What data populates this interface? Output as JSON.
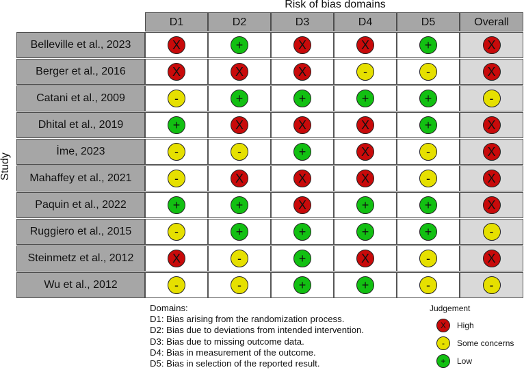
{
  "title": "Risk of bias domains",
  "y_axis_label": "Study",
  "columns": [
    "D1",
    "D2",
    "D3",
    "D4",
    "D5",
    "Overall"
  ],
  "symbols": {
    "high": "X",
    "some": "-",
    "low": "+"
  },
  "colors": {
    "high": "#c80a0a",
    "some": "#e6e000",
    "low": "#12c012",
    "header": "#a6a6a6",
    "overall_bg": "#d9d9d9"
  },
  "rows": [
    {
      "study": "Belleville et al., 2023",
      "judgements": [
        "high",
        "low",
        "high",
        "high",
        "low",
        "high"
      ]
    },
    {
      "study": "Berger et al., 2016",
      "judgements": [
        "high",
        "high",
        "high",
        "some",
        "some",
        "high"
      ]
    },
    {
      "study": "Catani et al., 2009",
      "judgements": [
        "some",
        "low",
        "low",
        "low",
        "low",
        "some"
      ]
    },
    {
      "study": "Dhital et al., 2019",
      "judgements": [
        "low",
        "high",
        "high",
        "high",
        "low",
        "high"
      ]
    },
    {
      "study": "İme, 2023",
      "judgements": [
        "some",
        "some",
        "low",
        "high",
        "some",
        "high"
      ]
    },
    {
      "study": "Mahaffey et al., 2021",
      "judgements": [
        "some",
        "high",
        "high",
        "high",
        "some",
        "high"
      ]
    },
    {
      "study": "Paquin et al., 2022",
      "judgements": [
        "low",
        "low",
        "high",
        "low",
        "low",
        "high"
      ]
    },
    {
      "study": "Ruggiero et al., 2015",
      "judgements": [
        "some",
        "low",
        "low",
        "low",
        "low",
        "some"
      ]
    },
    {
      "study": "Steinmetz et al., 2012",
      "judgements": [
        "high",
        "some",
        "low",
        "high",
        "some",
        "high"
      ]
    },
    {
      "study": "Wu et al., 2012",
      "judgements": [
        "some",
        "some",
        "low",
        "low",
        "some",
        "some"
      ]
    }
  ],
  "domains": {
    "title": "Domains:",
    "items": [
      "D1: Bias arising from the randomization process.",
      "D2: Bias due to deviations from intended intervention.",
      "D3: Bias due to missing outcome data.",
      "D4: Bias in measurement of the outcome.",
      "D5: Bias in selection of the reported result."
    ]
  },
  "legend": {
    "title": "Judgement",
    "items": [
      {
        "key": "high",
        "label": "High"
      },
      {
        "key": "some",
        "label": "Some concerns"
      },
      {
        "key": "low",
        "label": "Low"
      }
    ]
  }
}
